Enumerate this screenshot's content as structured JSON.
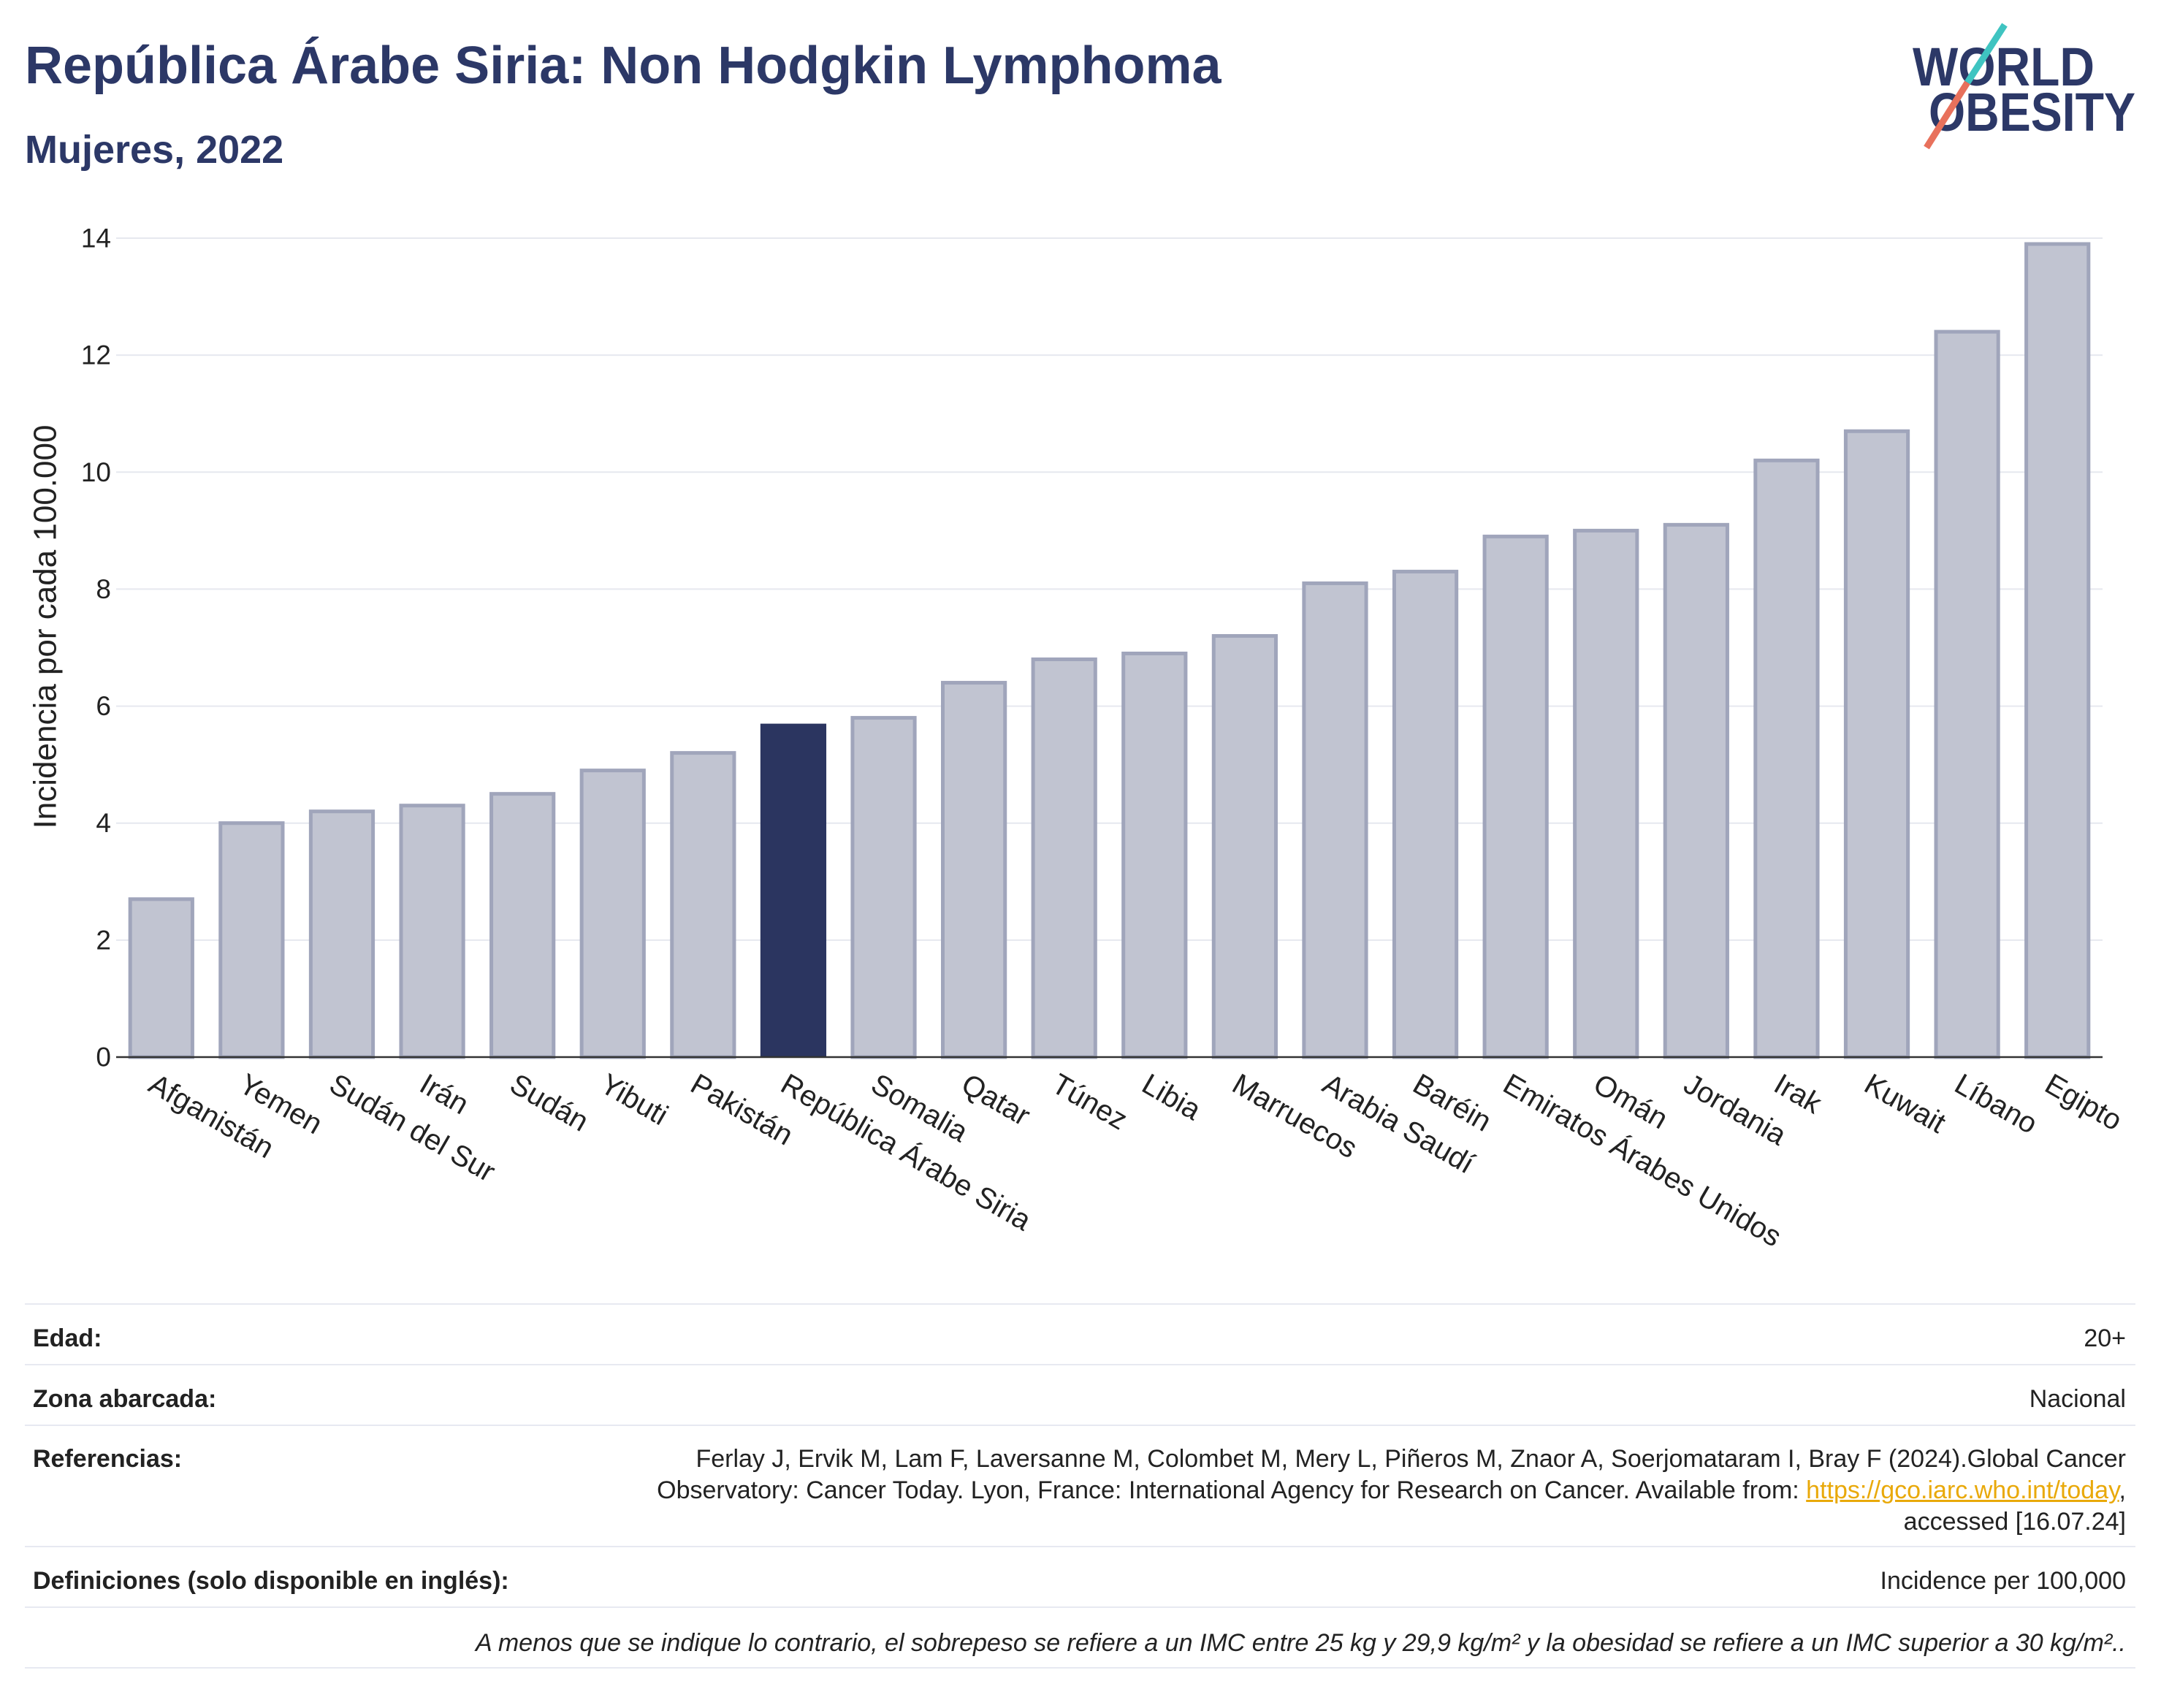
{
  "chart_data": {
    "type": "bar",
    "title": "República Árabe Siria: Non Hodgkin Lymphoma",
    "subtitle": "Mujeres, 2022",
    "ylabel": "Incidencia por cada 100.000",
    "categories": [
      "Afganistán",
      "Yemen",
      "Sudán del Sur",
      "Irán",
      "Sudán",
      "Yibuti",
      "Pakistán",
      "República Árabe Siria",
      "Somalia",
      "Qatar",
      "Túnez",
      "Libia",
      "Marruecos",
      "Arabia Saudí",
      "Baréin",
      "Emiratos Árabes Unidos",
      "Omán",
      "Jordania",
      "Irak",
      "Kuwait",
      "Líbano",
      "Egipto"
    ],
    "values": [
      2.7,
      4.0,
      4.2,
      4.3,
      4.5,
      4.9,
      5.2,
      5.7,
      5.8,
      6.4,
      6.8,
      6.9,
      7.2,
      8.1,
      8.3,
      8.9,
      9.0,
      9.1,
      10.2,
      10.7,
      12.4,
      13.9
    ],
    "highlight": "República Árabe Siria",
    "ylim": [
      0,
      14
    ],
    "yticks": [
      0,
      2,
      4,
      6,
      8,
      10,
      12,
      14
    ],
    "grid": true,
    "colors": {
      "bar": "#c1c4d1",
      "bar_border": "#a0a5bb",
      "highlight": "#2b3560",
      "grid": "#e6e8ef",
      "axis": "#333333"
    }
  },
  "logo": {
    "line1": "WORLD",
    "line2": "OBESITY",
    "colors": {
      "text": "#2c3867",
      "slash_top": "#3fc4c1",
      "slash_bottom": "#e8715c"
    }
  },
  "theme": {
    "title": "#2c3867",
    "link": "#e9a90a",
    "text": "#222222"
  },
  "info_table": {
    "age": {
      "label": "Edad:",
      "value": "20+"
    },
    "area": {
      "label": "Zona abarcada:",
      "value": "Nacional"
    },
    "references": {
      "label": "Referencias:",
      "line1": "Ferlay J, Ervik M, Lam F, Laversanne M, Colombet M, Mery L, Piñeros M, Znaor A, Soerjomataram I, Bray F (2024).Global Cancer",
      "line2": "Observatory: Cancer Today. Lyon, France: International Agency for Research on Cancer. Available from: ",
      "link": "https://gco.iarc.who.int/today",
      "line2_end": ",",
      "line3": "accessed [16.07.24]"
    },
    "definitions": {
      "label": "Definiciones (solo disponible en inglés):",
      "value": "Incidence per 100,000"
    },
    "note": "A menos que se indique lo contrario, el sobrepeso se refiere a un IMC entre 25 kg y 29,9 kg/m² y la obesidad se refiere a un IMC superior a 30 kg/m².."
  }
}
